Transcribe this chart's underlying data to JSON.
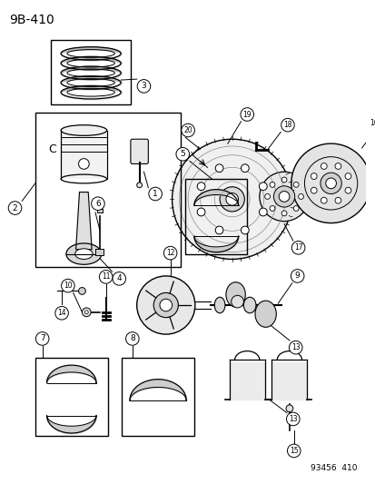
{
  "title": "9B-410",
  "footer": "93456  410",
  "bg_color": "#ffffff",
  "fg_color": "#000000",
  "figsize": [
    4.14,
    5.33
  ],
  "dpi": 100
}
